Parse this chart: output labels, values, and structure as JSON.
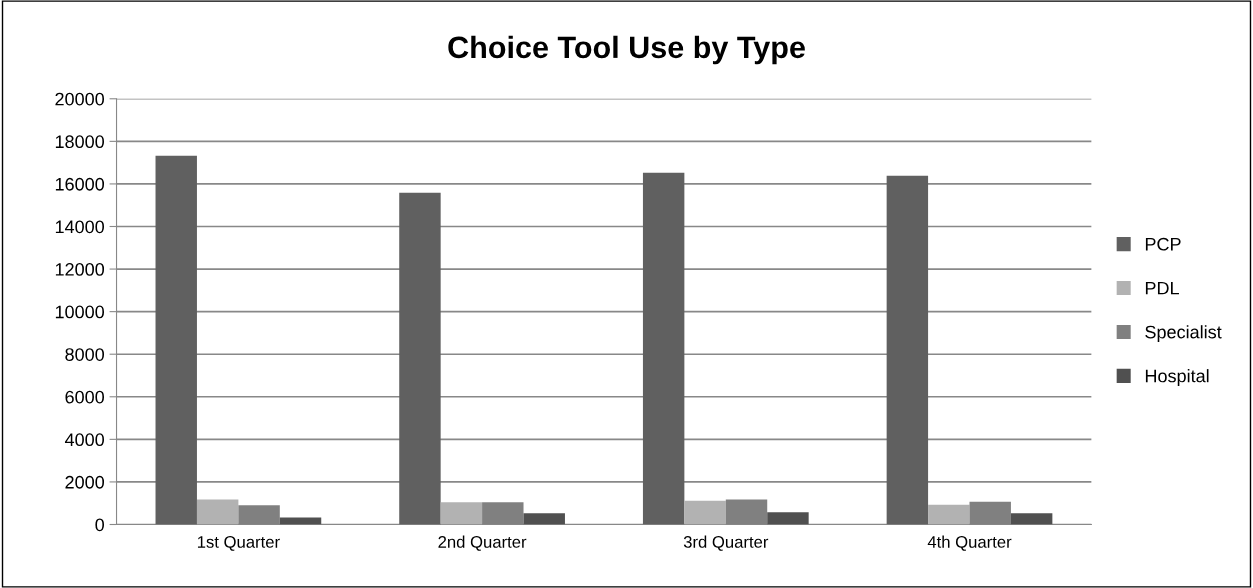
{
  "chart_data": {
    "type": "bar",
    "title": "Choice Tool Use by Type",
    "categories": [
      "1st Quarter",
      "2nd Quarter",
      "3rd Quarter",
      "4th Quarter"
    ],
    "series": [
      {
        "name": "PCP",
        "color": "#606060",
        "values": [
          17320,
          15580,
          16520,
          16380
        ]
      },
      {
        "name": "PDL",
        "color": "#b2b2b2",
        "values": [
          1170,
          1050,
          1120,
          930
        ]
      },
      {
        "name": "Specialist",
        "color": "#808080",
        "values": [
          910,
          1050,
          1180,
          1070
        ]
      },
      {
        "name": "Hospital",
        "color": "#505050",
        "values": [
          330,
          530,
          580,
          530
        ]
      }
    ],
    "ylim": [
      0,
      20000
    ],
    "yticks": [
      0,
      2000,
      4000,
      6000,
      8000,
      10000,
      12000,
      14000,
      16000,
      18000,
      20000
    ],
    "grid": "y",
    "legend": "right"
  }
}
